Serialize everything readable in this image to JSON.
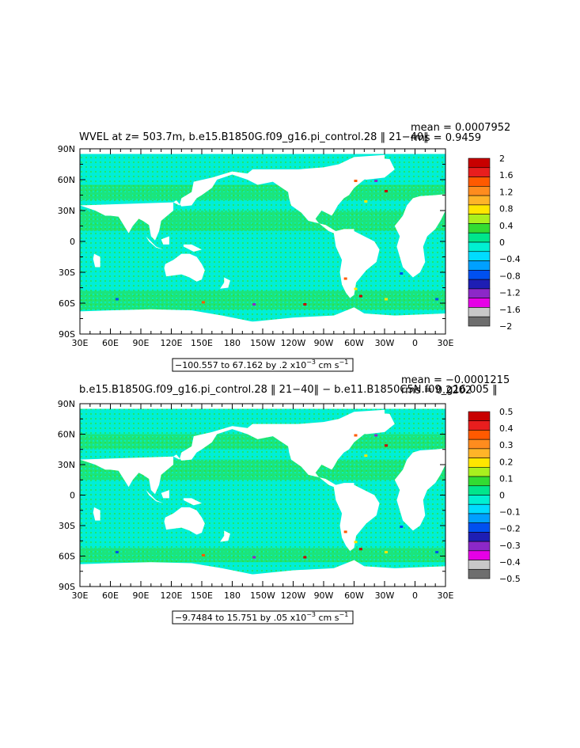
{
  "panels": [
    {
      "title": "WVEL at z= 503.7m, b.e15.B1850G.f09_g16.pi_control.28 ‖ 21−40‖",
      "mean": "mean = 0.0007952",
      "rms": "rms = 0.9459",
      "range_text": "−100.557 to 67.162 by .2 x10",
      "range_exp": "−3",
      "range_units": " cm s",
      "range_units_exp": "−1",
      "colorbar": {
        "labels": [
          "2",
          "1.6",
          "1.2",
          "0.8",
          "0.4",
          "0",
          "−0.4",
          "−0.8",
          "−1.2",
          "−1.6",
          "−2"
        ],
        "colors": [
          "#c80000",
          "#e81e1e",
          "#ff5a00",
          "#ff8c1e",
          "#ffb428",
          "#ffe600",
          "#aaf01e",
          "#32dc32",
          "#00e68c",
          "#00f0d2",
          "#00dcff",
          "#00a0ff",
          "#0050f0",
          "#1e1eb4",
          "#8c28c8",
          "#e600e6",
          "#c8c8c8",
          "#6e6e6e"
        ]
      }
    },
    {
      "title": "b.e15.B1850G.f09_g16.pi_control.28 ‖ 21−40‖ − b.e11.B1850C5N.f09_g16.005 ‖",
      "mean": "mean = −0.0001215",
      "rms": "rms = 0.2202",
      "range_text": "−9.7484 to 15.751 by .05 x10",
      "range_exp": "−3",
      "range_units": " cm s",
      "range_units_exp": "−1",
      "colorbar": {
        "labels": [
          "0.5",
          "0.4",
          "0.3",
          "0.2",
          "0.1",
          "0",
          "−0.1",
          "−0.2",
          "−0.3",
          "−0.4",
          "−0.5"
        ],
        "colors": [
          "#c80000",
          "#e81e1e",
          "#ff5a00",
          "#ff8c1e",
          "#ffb428",
          "#ffe600",
          "#aaf01e",
          "#32dc32",
          "#00e68c",
          "#00f0d2",
          "#00dcff",
          "#00a0ff",
          "#0050f0",
          "#1e1eb4",
          "#8c28c8",
          "#e600e6",
          "#c8c8c8",
          "#6e6e6e"
        ]
      }
    }
  ],
  "axes": {
    "y_ticks": [
      "90N",
      "60N",
      "30N",
      "0",
      "30S",
      "60S",
      "90S"
    ],
    "x_ticks": [
      "30E",
      "60E",
      "90E",
      "120E",
      "150E",
      "180",
      "150W",
      "120W",
      "90W",
      "60W",
      "30W",
      "0",
      "30E"
    ]
  },
  "chart_data": {
    "type": "heatmap",
    "charts": [
      {
        "variable": "WVEL",
        "depth": "503.7m",
        "case": "b.e15.B1850G.f09_g16.pi_control.28",
        "years": "21−40",
        "mean": 0.0007952,
        "rms": 0.9459,
        "min": -100.557,
        "max": 67.162,
        "interval": 0.2,
        "units": "x10−3 cm s−1",
        "contour_levels": [
          2,
          1.6,
          1.2,
          0.8,
          0.4,
          0,
          -0.4,
          -0.8,
          -1.2,
          -1.6,
          -2
        ],
        "lon_range": [
          "30E",
          "30E"
        ],
        "lat_range": [
          "90S",
          "90N"
        ]
      },
      {
        "variable": "WVEL difference",
        "case_a": "b.e15.B1850G.f09_g16.pi_control.28",
        "case_b": "b.e11.B1850C5N.f09_g16.005",
        "mean": -0.0001215,
        "rms": 0.2202,
        "min": -9.7484,
        "max": 15.751,
        "interval": 0.05,
        "units": "x10−3 cm s−1",
        "contour_levels": [
          0.5,
          0.4,
          0.3,
          0.2,
          0.1,
          0,
          -0.1,
          -0.2,
          -0.3,
          -0.4,
          -0.5
        ],
        "lon_range": [
          "30E",
          "30E"
        ],
        "lat_range": [
          "90S",
          "90N"
        ]
      }
    ]
  }
}
